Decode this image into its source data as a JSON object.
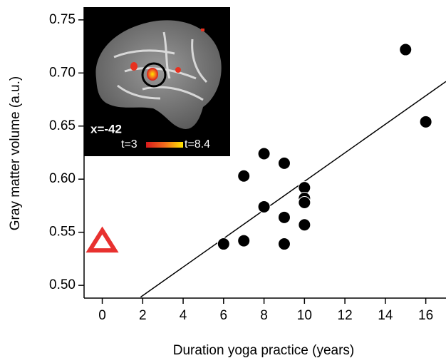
{
  "chart_data": {
    "type": "scatter",
    "xlabel": "Duration yoga practice (years)",
    "ylabel": "Gray matter volume (a.u.)",
    "xlim": [
      -0.9,
      17
    ],
    "ylim": [
      0.488,
      0.762
    ],
    "xticks": [
      0,
      2,
      4,
      6,
      8,
      10,
      12,
      14,
      16
    ],
    "yticks": [
      {
        "value": 0.5,
        "label": "0.50"
      },
      0.55,
      {
        "value": 0.6,
        "label": "0.60"
      },
      0.65,
      {
        "value": 0.7,
        "label": "0.70"
      },
      0.75
    ],
    "series": [
      {
        "color": "#000000",
        "marker": "circle",
        "x": [
          6,
          7,
          7,
          8,
          8,
          9,
          9,
          9,
          10,
          10,
          10,
          10,
          15,
          16
        ],
        "values": [
          0.539,
          0.542,
          0.603,
          0.574,
          0.624,
          0.615,
          0.564,
          0.539,
          0.592,
          0.582,
          0.578,
          0.557,
          0.722,
          0.654
        ]
      },
      {
        "color": "#e8312f",
        "marker": "triangle",
        "x": [
          0
        ],
        "values": [
          0.541
        ]
      }
    ],
    "fit": {
      "color": "#000000",
      "x": [
        1.9,
        17
      ],
      "values": [
        0.489,
        0.692
      ]
    },
    "annotations": [
      "x=-42",
      "t=3",
      "t=8.4"
    ]
  }
}
